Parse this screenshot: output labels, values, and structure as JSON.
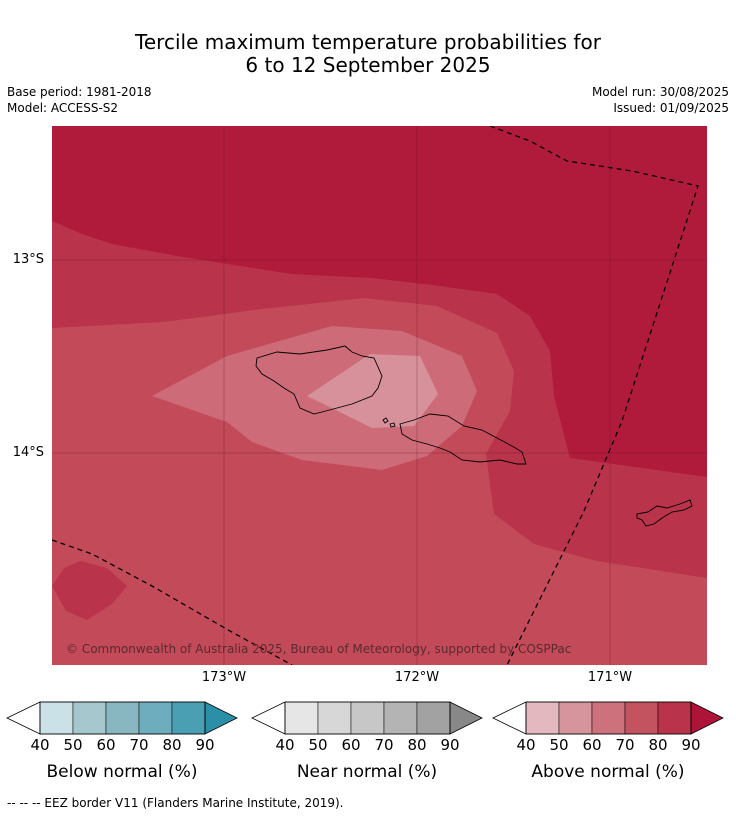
{
  "title_line1": "Tercile maximum temperature probabilities for",
  "title_line2": "6 to 12 September 2025",
  "meta_left": [
    "Base period: 1981-2018",
    "Model: ACCESS-S2"
  ],
  "meta_right": [
    "Model run: 30/08/2025",
    "Issued: 01/09/2025"
  ],
  "map": {
    "lat_labels": [
      "13°S",
      "14°S"
    ],
    "lon_labels": [
      "173°W",
      "172°W",
      "171°W"
    ],
    "copyright": "© Commonwealth of Australia 2025, Bureau of Meteorology, supported by COSPPac",
    "colors": {
      "above_90": "#b01b3b",
      "above_80": "#b9334b",
      "above_70": "#c34a59",
      "above_60": "#cd6b78",
      "above_50": "#d6919b",
      "land_outline": "#000000",
      "eez_line": "#000000"
    }
  },
  "legends": [
    {
      "title": "Below normal (%)",
      "ticks": [
        "40",
        "50",
        "60",
        "70",
        "80",
        "90"
      ],
      "colors": [
        "#c9e1e7",
        "#a6c7ce",
        "#88b6c1",
        "#6eadbd",
        "#4a9fb3",
        "#2b8fa8"
      ]
    },
    {
      "title": "Near normal (%)",
      "ticks": [
        "40",
        "50",
        "60",
        "70",
        "80",
        "90"
      ],
      "colors": [
        "#e6e6e6",
        "#d7d7d7",
        "#c7c7c7",
        "#b4b4b4",
        "#a2a2a2",
        "#888888"
      ]
    },
    {
      "title": "Above normal (%)",
      "ticks": [
        "40",
        "50",
        "60",
        "70",
        "80",
        "90"
      ],
      "colors": [
        "#e3b8bf",
        "#d6959d",
        "#cd727d",
        "#c3545f",
        "#b9334b",
        "#ad1437"
      ]
    }
  ],
  "footer": "--  --  -- EEZ border V11 (Flanders Marine Institute, 2019)."
}
